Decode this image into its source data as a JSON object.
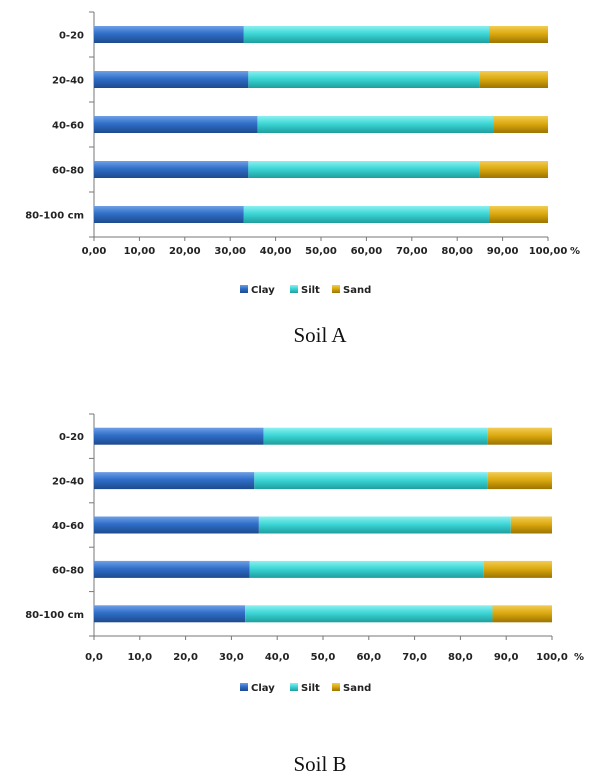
{
  "colors": {
    "Clay": "#2f6ec8",
    "Silt": "#3dd6d6",
    "Sand": "#dcaa10"
  },
  "chart_data": [
    {
      "type": "bar",
      "orientation": "horizontal",
      "stacked": true,
      "caption": "Soil A",
      "categories": [
        "0-20",
        "20-40",
        "40-60",
        "60-80",
        "80-100 cm"
      ],
      "series": [
        {
          "name": "Clay",
          "values": [
            33,
            34,
            36,
            34,
            33
          ]
        },
        {
          "name": "Silt",
          "values": [
            54,
            51,
            52,
            51,
            54
          ]
        },
        {
          "name": "Sand",
          "values": [
            13,
            15,
            12,
            15,
            13
          ]
        }
      ],
      "xlim": [
        0,
        100
      ],
      "xticks": [
        "0,00",
        "10,00",
        "20,00",
        "30,00",
        "40,00",
        "50,00",
        "60,00",
        "70,00",
        "80,00",
        "90,00",
        "100,00"
      ],
      "x_unit": "%",
      "legend": "bottom"
    },
    {
      "type": "bar",
      "orientation": "horizontal",
      "stacked": true,
      "caption": "Soil B",
      "categories": [
        "0-20",
        "20-40",
        "40-60",
        "60-80",
        "80-100 cm"
      ],
      "series": [
        {
          "name": "Clay",
          "values": [
            37,
            35,
            36,
            34,
            33
          ]
        },
        {
          "name": "Silt",
          "values": [
            49,
            51,
            55,
            51,
            54
          ]
        },
        {
          "name": "Sand",
          "values": [
            14,
            14,
            9,
            15,
            13
          ]
        }
      ],
      "xlim": [
        0,
        100
      ],
      "xticks": [
        "0,0",
        "10,0",
        "20,0",
        "30,0",
        "40,0",
        "50,0",
        "60,0",
        "70,0",
        "80,0",
        "90,0",
        "100,0"
      ],
      "x_unit": "%",
      "legend": "bottom"
    }
  ]
}
